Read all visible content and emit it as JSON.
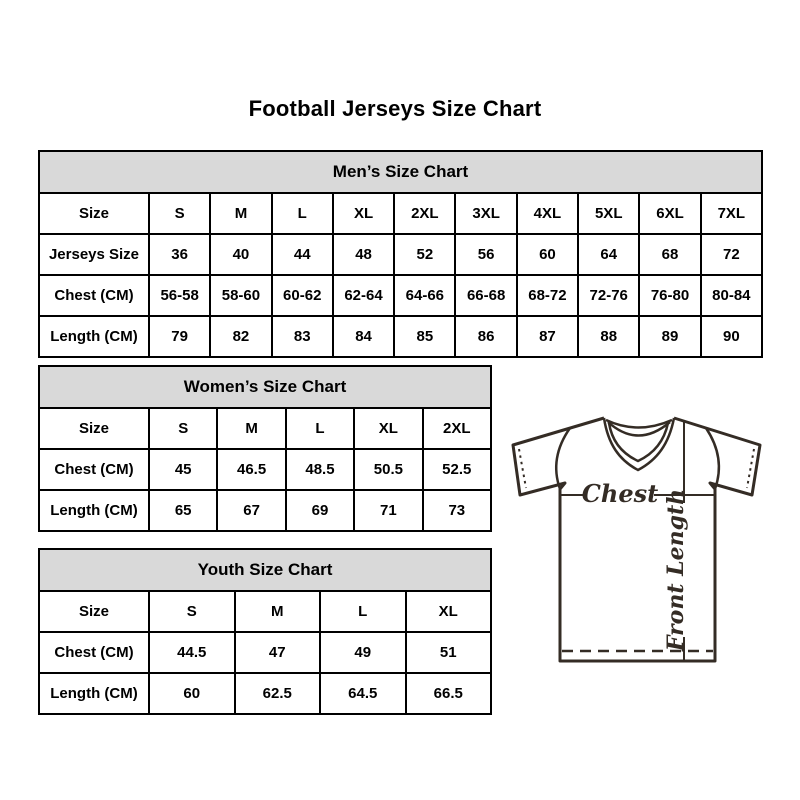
{
  "page": {
    "title": "Football Jerseys Size Chart"
  },
  "tables": [
    {
      "id": "mens",
      "title": "Men’s Size Chart",
      "rows": [
        [
          "Size",
          "S",
          "M",
          "L",
          "XL",
          "2XL",
          "3XL",
          "4XL",
          "5XL",
          "6XL",
          "7XL"
        ],
        [
          "Jerseys Size",
          "36",
          "40",
          "44",
          "48",
          "52",
          "56",
          "60",
          "64",
          "68",
          "72"
        ],
        [
          "Chest (CM)",
          "56-58",
          "58-60",
          "60-62",
          "62-64",
          "64-66",
          "66-68",
          "68-72",
          "72-76",
          "76-80",
          "80-84"
        ],
        [
          "Length (CM)",
          "79",
          "82",
          "83",
          "84",
          "85",
          "86",
          "87",
          "88",
          "89",
          "90"
        ]
      ]
    },
    {
      "id": "womens",
      "title": "Women’s Size Chart",
      "rows": [
        [
          "Size",
          "S",
          "M",
          "L",
          "XL",
          "2XL"
        ],
        [
          "Chest (CM)",
          "45",
          "46.5",
          "48.5",
          "50.5",
          "52.5"
        ],
        [
          "Length (CM)",
          "65",
          "67",
          "69",
          "71",
          "73"
        ]
      ]
    },
    {
      "id": "youth",
      "title": "Youth Size Chart",
      "rows": [
        [
          "Size",
          "S",
          "M",
          "L",
          "XL"
        ],
        [
          "Chest (CM)",
          "44.5",
          "47",
          "49",
          "51"
        ],
        [
          "Length (CM)",
          "60",
          "62.5",
          "64.5",
          "66.5"
        ]
      ]
    }
  ],
  "diagram": {
    "chest_label": "Chest",
    "front_length_label": "Front Length"
  },
  "colors": {
    "section_header_bg": "#d9d9d9",
    "table_border": "#000000",
    "text": "#000000",
    "jersey_line": "#342c25"
  }
}
